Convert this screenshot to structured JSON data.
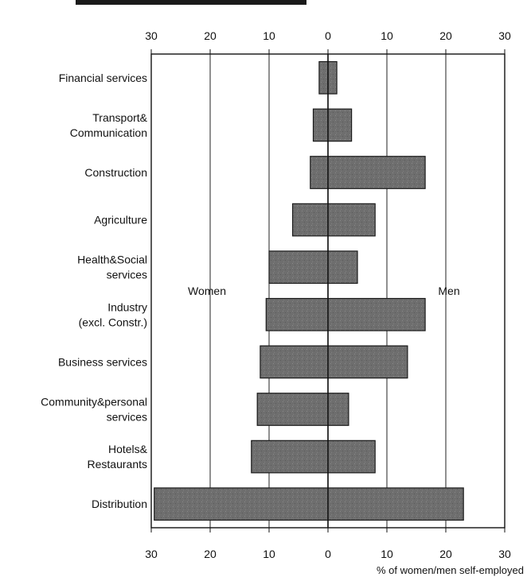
{
  "chart_data": {
    "type": "bar",
    "orientation": "horizontal",
    "layout": "population-pyramid",
    "title": "",
    "xlabel": "% of women/men self-employed",
    "ylabel": "",
    "xlim": [
      -30,
      30
    ],
    "xticks": [
      -30,
      -20,
      -10,
      0,
      10,
      20,
      30
    ],
    "xtick_labels": [
      "30",
      "20",
      "10",
      "0",
      "10",
      "20",
      "30"
    ],
    "grid": "vertical",
    "categories": [
      [
        "Financial services"
      ],
      [
        "Transport&",
        "Communication"
      ],
      [
        "Construction"
      ],
      [
        "Agriculture"
      ],
      [
        "Health&Social",
        "services"
      ],
      [
        "Industry",
        "(excl. Constr.)"
      ],
      [
        "Business services"
      ],
      [
        "Community&personal",
        "services"
      ],
      [
        "Hotels&",
        "Restaurants"
      ],
      [
        "Distribution"
      ]
    ],
    "series": [
      {
        "name": "Women",
        "values": [
          1.5,
          2.5,
          3,
          6,
          10,
          10.5,
          11.5,
          12,
          13,
          29.5
        ]
      },
      {
        "name": "Men",
        "values": [
          1.5,
          4,
          16.5,
          8,
          5,
          16.5,
          13.5,
          3.5,
          8,
          23
        ]
      }
    ],
    "annotations": [
      {
        "text": "Women",
        "x": -20,
        "category_index": 4.5
      },
      {
        "text": "Men",
        "x": 20,
        "category_index": 4.5
      }
    ],
    "bar_color": "#6e6e6e"
  }
}
